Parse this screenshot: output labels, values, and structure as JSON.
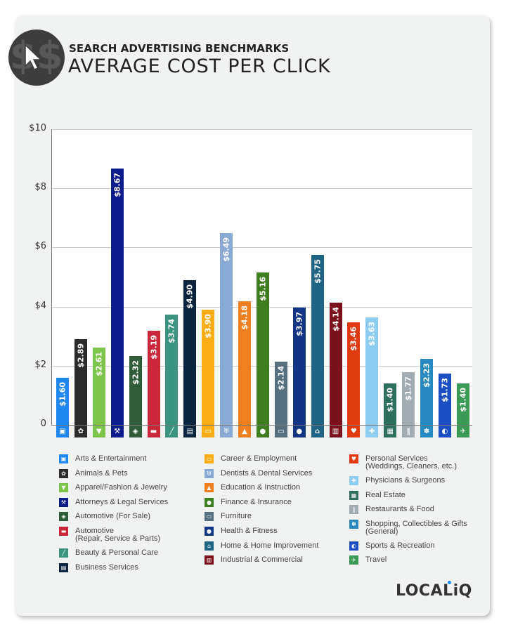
{
  "header": {
    "subtitle": "SEARCH ADVERTISING BENCHMARKS",
    "title": "AVERAGE COST PER CLICK",
    "badge_icon": "dollar-cursor-icon"
  },
  "y_axis": {
    "ticks": [
      "0",
      "$2",
      "$4",
      "$6",
      "$8",
      "$10"
    ]
  },
  "brand": {
    "logo": "LOCALIQ",
    "logo_display": "LOCALiQ",
    "dot_color": "#1a8cff"
  },
  "chart_data": {
    "type": "bar",
    "title": "AVERAGE COST PER CLICK",
    "subtitle": "SEARCH ADVERTISING BENCHMARKS",
    "xlabel": "",
    "ylabel": "",
    "ylim": [
      0,
      10
    ],
    "yticks": [
      0,
      2,
      4,
      6,
      8,
      10
    ],
    "ytick_labels": [
      "0",
      "$2",
      "$4",
      "$6",
      "$8",
      "$10"
    ],
    "grid": true,
    "legend_position": "bottom",
    "categories": [
      "Arts & Entertainment",
      "Animals & Pets",
      "Apparel/Fashion & Jewelry",
      "Attorneys & Legal Services",
      "Automotive (For Sale)",
      "Automotive (Repair, Service & Parts)",
      "Beauty & Personal Care",
      "Business Services",
      "Career & Employment",
      "Dentists & Dental Services",
      "Education & Instruction",
      "Finance & Insurance",
      "Furniture",
      "Health & Fitness",
      "Home & Home Improvement",
      "Industrial & Commercial",
      "Personal Services (Weddings, Cleaners, etc.)",
      "Physicians & Surgeons",
      "Real Estate",
      "Restaurants & Food",
      "Shopping, Collectibles & Gifts (General)",
      "Sports & Recreation",
      "Travel"
    ],
    "values": [
      1.6,
      2.89,
      2.61,
      8.67,
      2.32,
      3.19,
      3.74,
      4.9,
      3.9,
      6.49,
      4.18,
      5.16,
      2.14,
      3.97,
      5.75,
      4.14,
      3.46,
      3.63,
      1.4,
      1.77,
      2.23,
      1.73,
      1.4
    ],
    "value_labels": [
      "$1.60",
      "$2.89",
      "$2.61",
      "$8.67",
      "$2.32",
      "$3.19",
      "$3.74",
      "$4.90",
      "$3.90",
      "$6.49",
      "$4.18",
      "$5.16",
      "$2.14",
      "$3.97",
      "$5.75",
      "$4.14",
      "$3.46",
      "$3.63",
      "$1.40",
      "$1.77",
      "$2.23",
      "$1.73",
      "$1.40"
    ],
    "colors": [
      "#1e88f0",
      "#2b2b2b",
      "#7cc44a",
      "#0b1c8c",
      "#2f5d3a",
      "#c8283a",
      "#3a9480",
      "#0b2440",
      "#fbad16",
      "#8aaad6",
      "#f07f20",
      "#3f7e20",
      "#56707f",
      "#123684",
      "#1f6485",
      "#7a111c",
      "#e03a10",
      "#8ecdf2",
      "#2e6e5c",
      "#a2adb3",
      "#2789bf",
      "#1a4ec2",
      "#3a9a55"
    ],
    "icons": [
      "picture-icon",
      "paw-icon",
      "shirt-icon",
      "gavel-icon",
      "price-tag-icon",
      "car-icon",
      "brush-icon",
      "document-icon",
      "briefcase-icon",
      "tooth-icon",
      "graduation-cap-icon",
      "piggy-bank-icon",
      "armchair-icon",
      "apple-icon",
      "house-icon",
      "factory-icon",
      "helping-hand-icon",
      "medical-cross-icon",
      "storefront-icon",
      "fork-knife-icon",
      "gift-bow-icon",
      "ball-icon",
      "airplane-icon"
    ]
  },
  "legend": {
    "columns": [
      [
        {
          "label": "Arts & Entertainment"
        },
        {
          "label": "Animals & Pets"
        },
        {
          "label": "Apparel/Fashion & Jewelry"
        },
        {
          "label": "Attorneys & Legal Services"
        },
        {
          "label": "Automotive (For Sale)"
        },
        {
          "label": "Automotive",
          "label2": "(Repair, Service & Parts)"
        },
        {
          "label": "Beauty & Personal Care"
        },
        {
          "label": "Business Services"
        }
      ],
      [
        {
          "label": "Career & Employment"
        },
        {
          "label": "Dentists & Dental Services"
        },
        {
          "label": "Education & Instruction"
        },
        {
          "label": "Finance & Insurance"
        },
        {
          "label": "Furniture"
        },
        {
          "label": "Health & Fitness"
        },
        {
          "label": "Home & Home Improvement"
        },
        {
          "label": "Industrial & Commercial"
        }
      ],
      [
        {
          "label": "Personal Services",
          "label2": "(Weddings, Cleaners, etc.)"
        },
        {
          "label": "Physicians & Surgeons"
        },
        {
          "label": "Real Estate"
        },
        {
          "label": "Restaurants & Food"
        },
        {
          "label": "Shopping, Collectibles & Gifts",
          "label2": "(General)"
        },
        {
          "label": "Sports & Recreation"
        },
        {
          "label": "Travel"
        }
      ]
    ]
  }
}
